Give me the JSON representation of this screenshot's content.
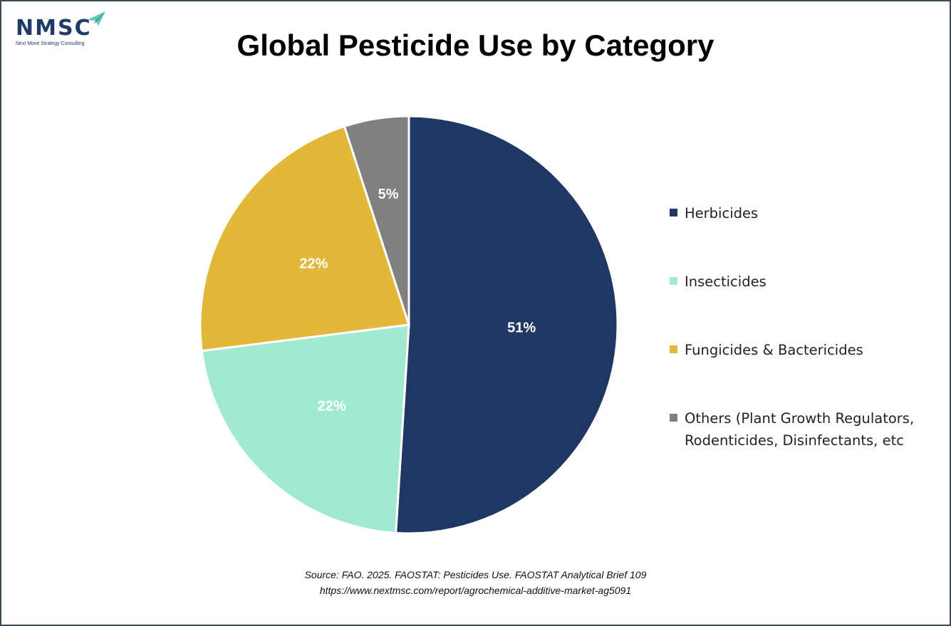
{
  "logo": {
    "text": "NMSC",
    "tagline": "Next Move Strategy Consulting",
    "accent_color": "#5fc9b5"
  },
  "source": {
    "line1": "Source: FAO. 2025. FAOSTAT: Pesticides Use. FAOSTAT Analytical Brief 109",
    "line2": "https://www.nextmsc.com/report/agrochemical-additive-market-ag5091"
  },
  "chart_data": {
    "type": "pie",
    "title": "Global Pesticide Use by Category",
    "unit": "%",
    "start_angle_deg": 0,
    "direction": "clockwise",
    "legend_position": "right",
    "slices": [
      {
        "label": "Herbicides",
        "value": 51,
        "display": "51%",
        "color": "#213763"
      },
      {
        "label": "Insecticides",
        "value": 22,
        "display": "22%",
        "color": "#a1e9d2"
      },
      {
        "label": "Fungicides & Bactericides",
        "value": 22,
        "display": "22%",
        "color": "#e1b83a"
      },
      {
        "label": "Others (Plant Growth Regulators, Rodenticides, Disinfectants, etc",
        "value": 5,
        "display": "5%",
        "color": "#808080"
      }
    ]
  }
}
